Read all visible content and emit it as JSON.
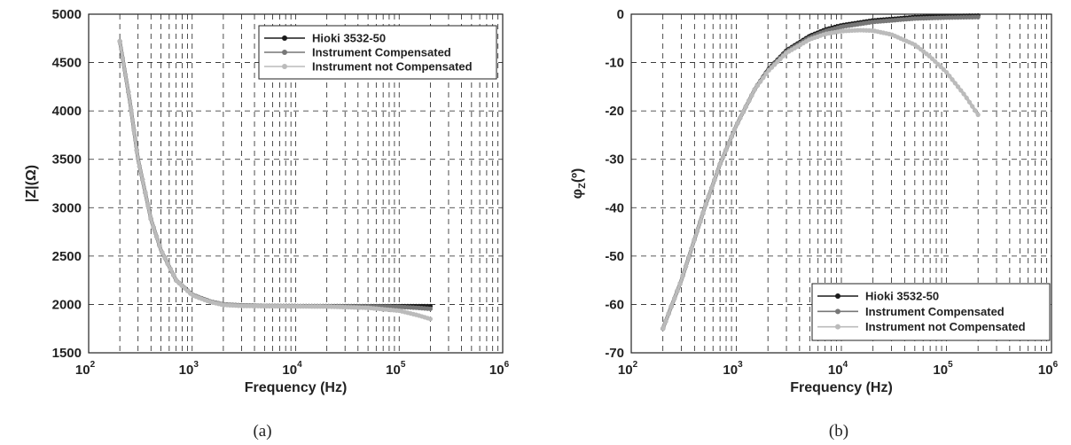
{
  "colors": {
    "hioki": "#1a1a1a",
    "compensated": "#777777",
    "not_compensated": "#bbbbbb"
  },
  "chart_data": [
    {
      "type": "line",
      "panel": "(a)",
      "xlabel": "Frequency (Hz)",
      "ylabel": "|Z|(Ω)",
      "xscale": "log",
      "xlim": [
        100,
        1000000
      ],
      "ylim": [
        1500,
        5000
      ],
      "x_ticks": [
        {
          "base": "10",
          "exp": "2"
        },
        {
          "base": "10",
          "exp": "3"
        },
        {
          "base": "10",
          "exp": "4"
        },
        {
          "base": "10",
          "exp": "5"
        },
        {
          "base": "10",
          "exp": "6"
        }
      ],
      "y_ticks": [
        "1500",
        "2000",
        "2500",
        "3000",
        "3500",
        "4000",
        "4500",
        "5000"
      ],
      "grid": true,
      "legend_position": "top-right",
      "series": [
        {
          "name": "Hioki 3532-50",
          "color_key": "hioki",
          "x": [
            200,
            250,
            300,
            400,
            500,
            700,
            1000,
            1500,
            2000,
            3000,
            5000,
            10000,
            20000,
            50000,
            100000,
            150000,
            200000
          ],
          "y": [
            4720,
            4100,
            3500,
            2880,
            2560,
            2250,
            2100,
            2030,
            2000,
            1990,
            1985,
            1983,
            1982,
            1982,
            1982,
            1982,
            1982
          ]
        },
        {
          "name": "Instrument Compensated",
          "color_key": "compensated",
          "x": [
            200,
            250,
            300,
            400,
            500,
            700,
            1000,
            1500,
            2000,
            3000,
            5000,
            10000,
            20000,
            50000,
            100000,
            150000,
            200000
          ],
          "y": [
            4720,
            4100,
            3500,
            2880,
            2560,
            2250,
            2100,
            2030,
            2000,
            1990,
            1985,
            1983,
            1982,
            1980,
            1975,
            1965,
            1955
          ]
        },
        {
          "name": "Instrument not Compensated",
          "color_key": "not_compensated",
          "x": [
            200,
            250,
            300,
            400,
            500,
            700,
            1000,
            1500,
            2000,
            3000,
            5000,
            10000,
            20000,
            50000,
            100000,
            150000,
            200000
          ],
          "y": [
            4720,
            4100,
            3500,
            2880,
            2560,
            2250,
            2095,
            2025,
            1995,
            1985,
            1982,
            1980,
            1978,
            1965,
            1935,
            1890,
            1850
          ]
        }
      ]
    },
    {
      "type": "line",
      "panel": "(b)",
      "xlabel": "Frequency (Hz)",
      "ylabel": "φZ(º)",
      "xscale": "log",
      "xlim": [
        100,
        1000000
      ],
      "ylim": [
        -70,
        0
      ],
      "x_ticks": [
        {
          "base": "10",
          "exp": "2"
        },
        {
          "base": "10",
          "exp": "3"
        },
        {
          "base": "10",
          "exp": "4"
        },
        {
          "base": "10",
          "exp": "5"
        },
        {
          "base": "10",
          "exp": "6"
        }
      ],
      "y_ticks": [
        "-70",
        "-60",
        "-50",
        "-40",
        "-30",
        "-20",
        "-10",
        "0"
      ],
      "grid": true,
      "legend_position": "bottom-right",
      "series": [
        {
          "name": "Hioki 3532-50",
          "color_key": "hioki",
          "x": [
            200,
            300,
            500,
            700,
            1000,
            1500,
            2000,
            3000,
            5000,
            7000,
            10000,
            20000,
            50000,
            100000,
            200000
          ],
          "y": [
            -65,
            -55,
            -40,
            -31,
            -23,
            -15.5,
            -11.5,
            -7.5,
            -4.5,
            -3.2,
            -2.3,
            -1.3,
            -0.6,
            -0.4,
            -0.3
          ]
        },
        {
          "name": "Instrument Compensated",
          "color_key": "compensated",
          "x": [
            200,
            300,
            500,
            700,
            1000,
            1500,
            2000,
            3000,
            5000,
            7000,
            10000,
            20000,
            50000,
            100000,
            200000
          ],
          "y": [
            -65,
            -55,
            -40,
            -31,
            -23,
            -15.5,
            -11.6,
            -7.7,
            -4.8,
            -3.5,
            -2.6,
            -1.6,
            -0.9,
            -0.7,
            -0.6
          ]
        },
        {
          "name": "Instrument not Compensated",
          "color_key": "not_compensated",
          "x": [
            200,
            300,
            500,
            700,
            1000,
            1500,
            2000,
            3000,
            5000,
            7000,
            10000,
            15000,
            20000,
            30000,
            50000,
            70000,
            100000,
            150000,
            200000
          ],
          "y": [
            -65,
            -55,
            -40,
            -31,
            -23,
            -15.5,
            -11.8,
            -8,
            -5.2,
            -4.1,
            -3.5,
            -3.3,
            -3.4,
            -4.2,
            -6.3,
            -8.8,
            -12,
            -16.8,
            -20.8
          ]
        }
      ]
    }
  ],
  "captions": [
    "(a)",
    "(b)"
  ]
}
